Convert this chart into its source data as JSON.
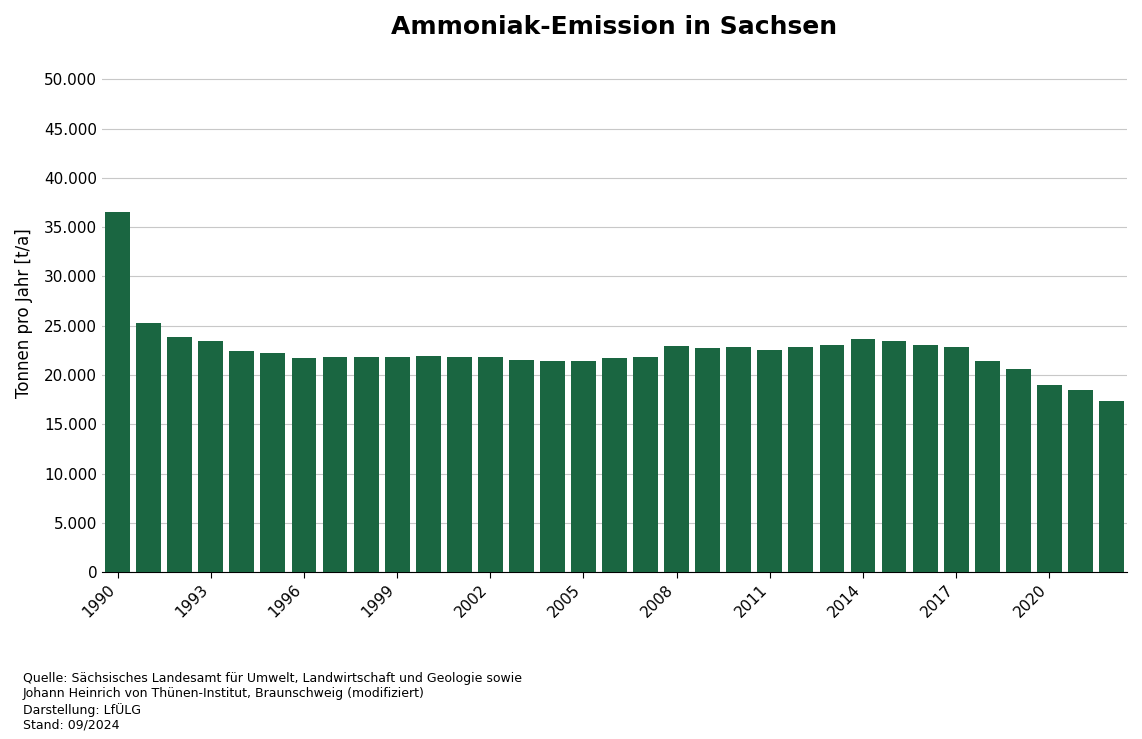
{
  "title": "Ammoniak-Emission in Sachsen",
  "ylabel": "Tonnen pro Jahr [t/a]",
  "bar_color": "#1a6641",
  "background_color": "#ffffff",
  "years": [
    1990,
    1991,
    1992,
    1993,
    1994,
    1995,
    1996,
    1997,
    1998,
    1999,
    2000,
    2001,
    2002,
    2003,
    2004,
    2005,
    2006,
    2007,
    2008,
    2009,
    2010,
    2011,
    2012,
    2013,
    2014,
    2015,
    2016,
    2017,
    2018,
    2019,
    2020,
    2021,
    2022
  ],
  "values": [
    36500,
    25300,
    23900,
    23500,
    22400,
    22200,
    21700,
    21800,
    21800,
    21800,
    21900,
    21800,
    21800,
    21500,
    21400,
    21400,
    21700,
    21800,
    22900,
    22700,
    22800,
    22500,
    22800,
    23000,
    23700,
    23500,
    23000,
    22800,
    21400,
    20600,
    19000,
    18500,
    17400
  ],
  "ylim": [
    0,
    52500
  ],
  "yticks": [
    0,
    5000,
    10000,
    15000,
    20000,
    25000,
    30000,
    35000,
    40000,
    45000,
    50000
  ],
  "xtick_years": [
    1990,
    1993,
    1996,
    1999,
    2002,
    2005,
    2008,
    2011,
    2014,
    2017,
    2020
  ],
  "source_text": "Quelle: Sächsisches Landesamt für Umwelt, Landwirtschaft und Geologie sowie\nJohann Heinrich von Thünen-Institut, Braunschweig (modifiziert)\nDarstellung: LfÜLG\nStand: 09/2024",
  "title_fontsize": 18,
  "ylabel_fontsize": 12,
  "tick_fontsize": 11,
  "source_fontsize": 9,
  "grid_color": "#c8c8c8",
  "bar_width": 0.8
}
